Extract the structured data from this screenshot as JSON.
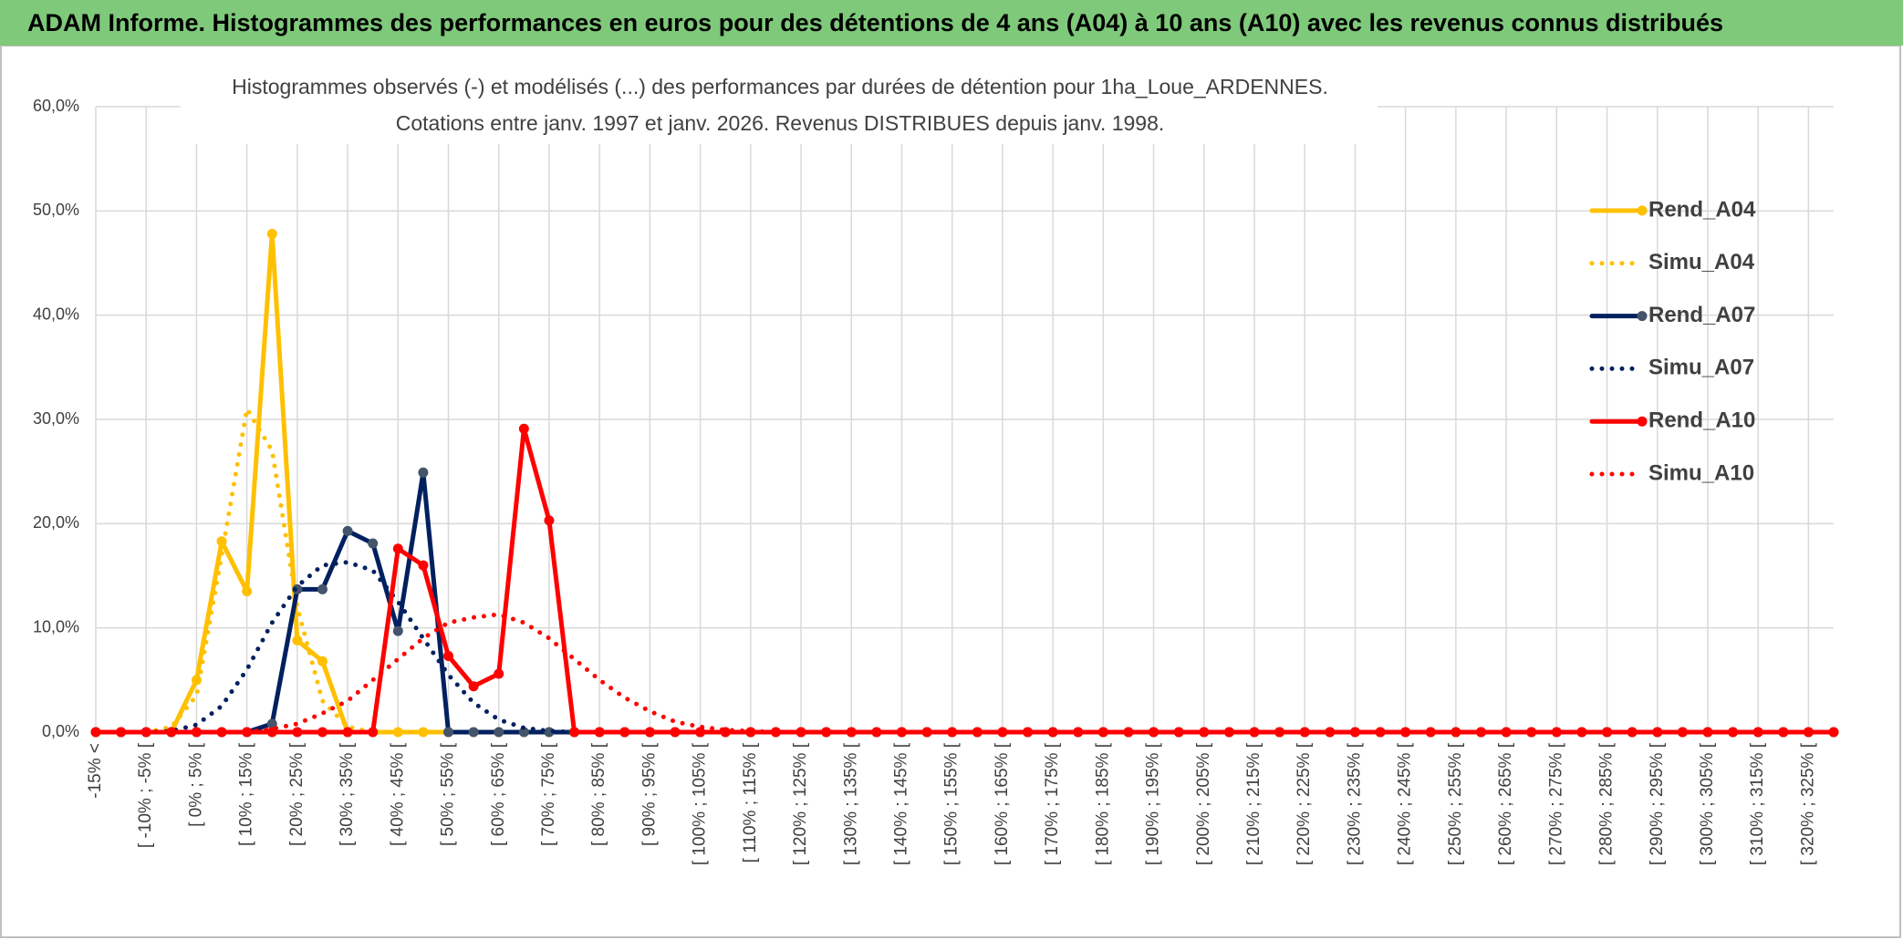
{
  "header": {
    "title": "ADAM Informe. Histogrammes des performances en euros pour des détentions de 4 ans (A04) à 10 ans (A10) avec les revenus connus distribués"
  },
  "chart_data": {
    "type": "line",
    "title": "Histogrammes observés (-) et modélisés (...) des performances par durées de détention pour 1ha_Loue_ARDENNES.",
    "subtitle": "Cotations entre janv. 1997 et janv. 2026. Revenus DISTRIBUES depuis janv. 1998.",
    "categories": [
      "-15% <",
      null,
      "[ -10% ; -5% [",
      null,
      "[ 0% ; 5% [",
      null,
      "[ 10% ; 15% [",
      null,
      "[ 20% ; 25% [",
      null,
      "[ 30% ; 35% [",
      null,
      "[ 40% ; 45% [",
      null,
      "[ 50% ; 55% [",
      null,
      "[ 60% ; 65% [",
      null,
      "[ 70% ; 75% [",
      null,
      "[ 80% ; 85% [",
      null,
      "[ 90% ; 95% [",
      null,
      "[ 100% ; 105% [",
      null,
      "[ 110% ; 115% [",
      null,
      "[ 120% ; 125% [",
      null,
      "[ 130% ; 135% [",
      null,
      "[ 140% ; 145% [",
      null,
      "[ 150% ; 155% [",
      null,
      "[ 160% ; 165% [",
      null,
      "[ 170% ; 175% [",
      null,
      "[ 180% ; 185% [",
      null,
      "[ 190% ; 195% [",
      null,
      "[ 200% ; 205% [",
      null,
      "[ 210% ; 215% [",
      null,
      "[ 220% ; 225% [",
      null,
      "[ 230% ; 235% [",
      null,
      "[ 240% ; 245% [",
      null,
      "[ 250% ; 255% [",
      null,
      "[ 260% ; 265% [",
      null,
      "[ 270% ; 275% [",
      null,
      "[ 280% ; 285% [",
      null,
      "[ 290% ; 295% [",
      null,
      "[ 300% ; 305% [",
      null,
      "[ 310% ; 315% [",
      null,
      "[ 320% ; 325% [",
      null
    ],
    "series": [
      {
        "name": "Rend_A04",
        "color": "#ffc000",
        "line_style": "solid",
        "markers": true,
        "values": [
          0,
          0,
          0,
          0,
          5,
          18.3,
          13.5,
          47.8,
          8.8,
          6.8,
          0,
          0,
          0,
          0,
          0,
          0,
          0,
          0,
          0,
          0,
          0,
          0,
          0,
          0,
          0,
          0,
          0,
          0,
          0,
          0,
          0,
          0,
          0,
          0,
          0,
          0,
          0,
          0,
          0,
          0,
          0,
          0,
          0,
          0,
          0,
          0,
          0,
          0,
          0,
          0,
          0,
          0,
          0,
          0,
          0,
          0,
          0,
          0,
          0,
          0,
          0,
          0,
          0,
          0,
          0,
          0,
          0,
          0,
          0,
          0
        ]
      },
      {
        "name": "Simu_A04",
        "color": "#ffc000",
        "line_style": "dotted",
        "markers": false,
        "values": [
          0,
          0,
          0,
          0.5,
          3.5,
          17,
          31,
          27,
          12,
          3,
          0.5,
          0,
          0,
          0,
          0,
          0,
          0,
          0,
          0,
          0,
          0,
          0,
          0,
          0,
          0,
          0,
          0,
          0,
          0,
          0,
          0,
          0,
          0,
          0,
          0,
          0,
          0,
          0,
          0,
          0,
          0,
          0,
          0,
          0,
          0,
          0,
          0,
          0,
          0,
          0,
          0,
          0,
          0,
          0,
          0,
          0,
          0,
          0,
          0,
          0,
          0,
          0,
          0,
          0,
          0,
          0,
          0,
          0,
          0,
          0
        ]
      },
      {
        "name": "Rend_A07",
        "color": "#002060",
        "marker_color": "#44546a",
        "line_style": "solid",
        "markers": true,
        "values": [
          0,
          0,
          0,
          0,
          0,
          0,
          0,
          0.8,
          13.7,
          13.7,
          19.3,
          18.1,
          9.7,
          24.9,
          0,
          0,
          0,
          0,
          0,
          0,
          0,
          0,
          0,
          0,
          0,
          0,
          0,
          0,
          0,
          0,
          0,
          0,
          0,
          0,
          0,
          0,
          0,
          0,
          0,
          0,
          0,
          0,
          0,
          0,
          0,
          0,
          0,
          0,
          0,
          0,
          0,
          0,
          0,
          0,
          0,
          0,
          0,
          0,
          0,
          0,
          0,
          0,
          0,
          0,
          0,
          0,
          0,
          0,
          0,
          0
        ]
      },
      {
        "name": "Simu_A07",
        "color": "#002060",
        "line_style": "dotted",
        "markers": false,
        "values": [
          0,
          0,
          0,
          0.1,
          0.7,
          2.5,
          6,
          10.5,
          14,
          16,
          16.3,
          15.5,
          12.5,
          9,
          5.5,
          2.8,
          1.2,
          0.4,
          0.1,
          0,
          0,
          0,
          0,
          0,
          0,
          0,
          0,
          0,
          0,
          0,
          0,
          0,
          0,
          0,
          0,
          0,
          0,
          0,
          0,
          0,
          0,
          0,
          0,
          0,
          0,
          0,
          0,
          0,
          0,
          0,
          0,
          0,
          0,
          0,
          0,
          0,
          0,
          0,
          0,
          0,
          0,
          0,
          0,
          0,
          0,
          0,
          0,
          0,
          0,
          0
        ]
      },
      {
        "name": "Rend_A10",
        "color": "#ff0000",
        "line_style": "solid",
        "markers": true,
        "values": [
          0,
          0,
          0,
          0,
          0,
          0,
          0,
          0,
          0,
          0,
          0,
          0,
          17.6,
          16,
          7.3,
          4.4,
          5.6,
          29.1,
          20.3,
          0,
          0,
          0,
          0,
          0,
          0,
          0,
          0,
          0,
          0,
          0,
          0,
          0,
          0,
          0,
          0,
          0,
          0,
          0,
          0,
          0,
          0,
          0,
          0,
          0,
          0,
          0,
          0,
          0,
          0,
          0,
          0,
          0,
          0,
          0,
          0,
          0,
          0,
          0,
          0,
          0,
          0,
          0,
          0,
          0,
          0,
          0,
          0,
          0,
          0,
          0
        ]
      },
      {
        "name": "Simu_A10",
        "color": "#ff0000",
        "line_style": "dotted",
        "markers": false,
        "values": [
          0,
          0,
          0,
          0,
          0,
          0,
          0,
          0.3,
          0.8,
          1.8,
          3,
          5,
          7,
          9,
          10.5,
          11,
          11.3,
          10.5,
          9,
          7,
          5,
          3.3,
          2,
          1,
          0.5,
          0.2,
          0.1,
          0,
          0,
          0,
          0,
          0,
          0,
          0,
          0,
          0,
          0,
          0,
          0,
          0,
          0,
          0,
          0,
          0,
          0,
          0,
          0,
          0,
          0,
          0,
          0,
          0,
          0,
          0,
          0,
          0,
          0,
          0,
          0,
          0,
          0,
          0,
          0,
          0,
          0,
          0,
          0,
          0,
          0,
          0
        ]
      }
    ],
    "ylim": [
      0,
      60
    ],
    "yticks": [
      {
        "value": 0,
        "label": "0,0%"
      },
      {
        "value": 10,
        "label": "10,0%"
      },
      {
        "value": 20,
        "label": "20,0%"
      },
      {
        "value": 30,
        "label": "30,0%"
      },
      {
        "value": 40,
        "label": "40,0%"
      },
      {
        "value": 50,
        "label": "50,0%"
      },
      {
        "value": 60,
        "label": "60,0%"
      }
    ],
    "grid": true,
    "legend": "right"
  }
}
